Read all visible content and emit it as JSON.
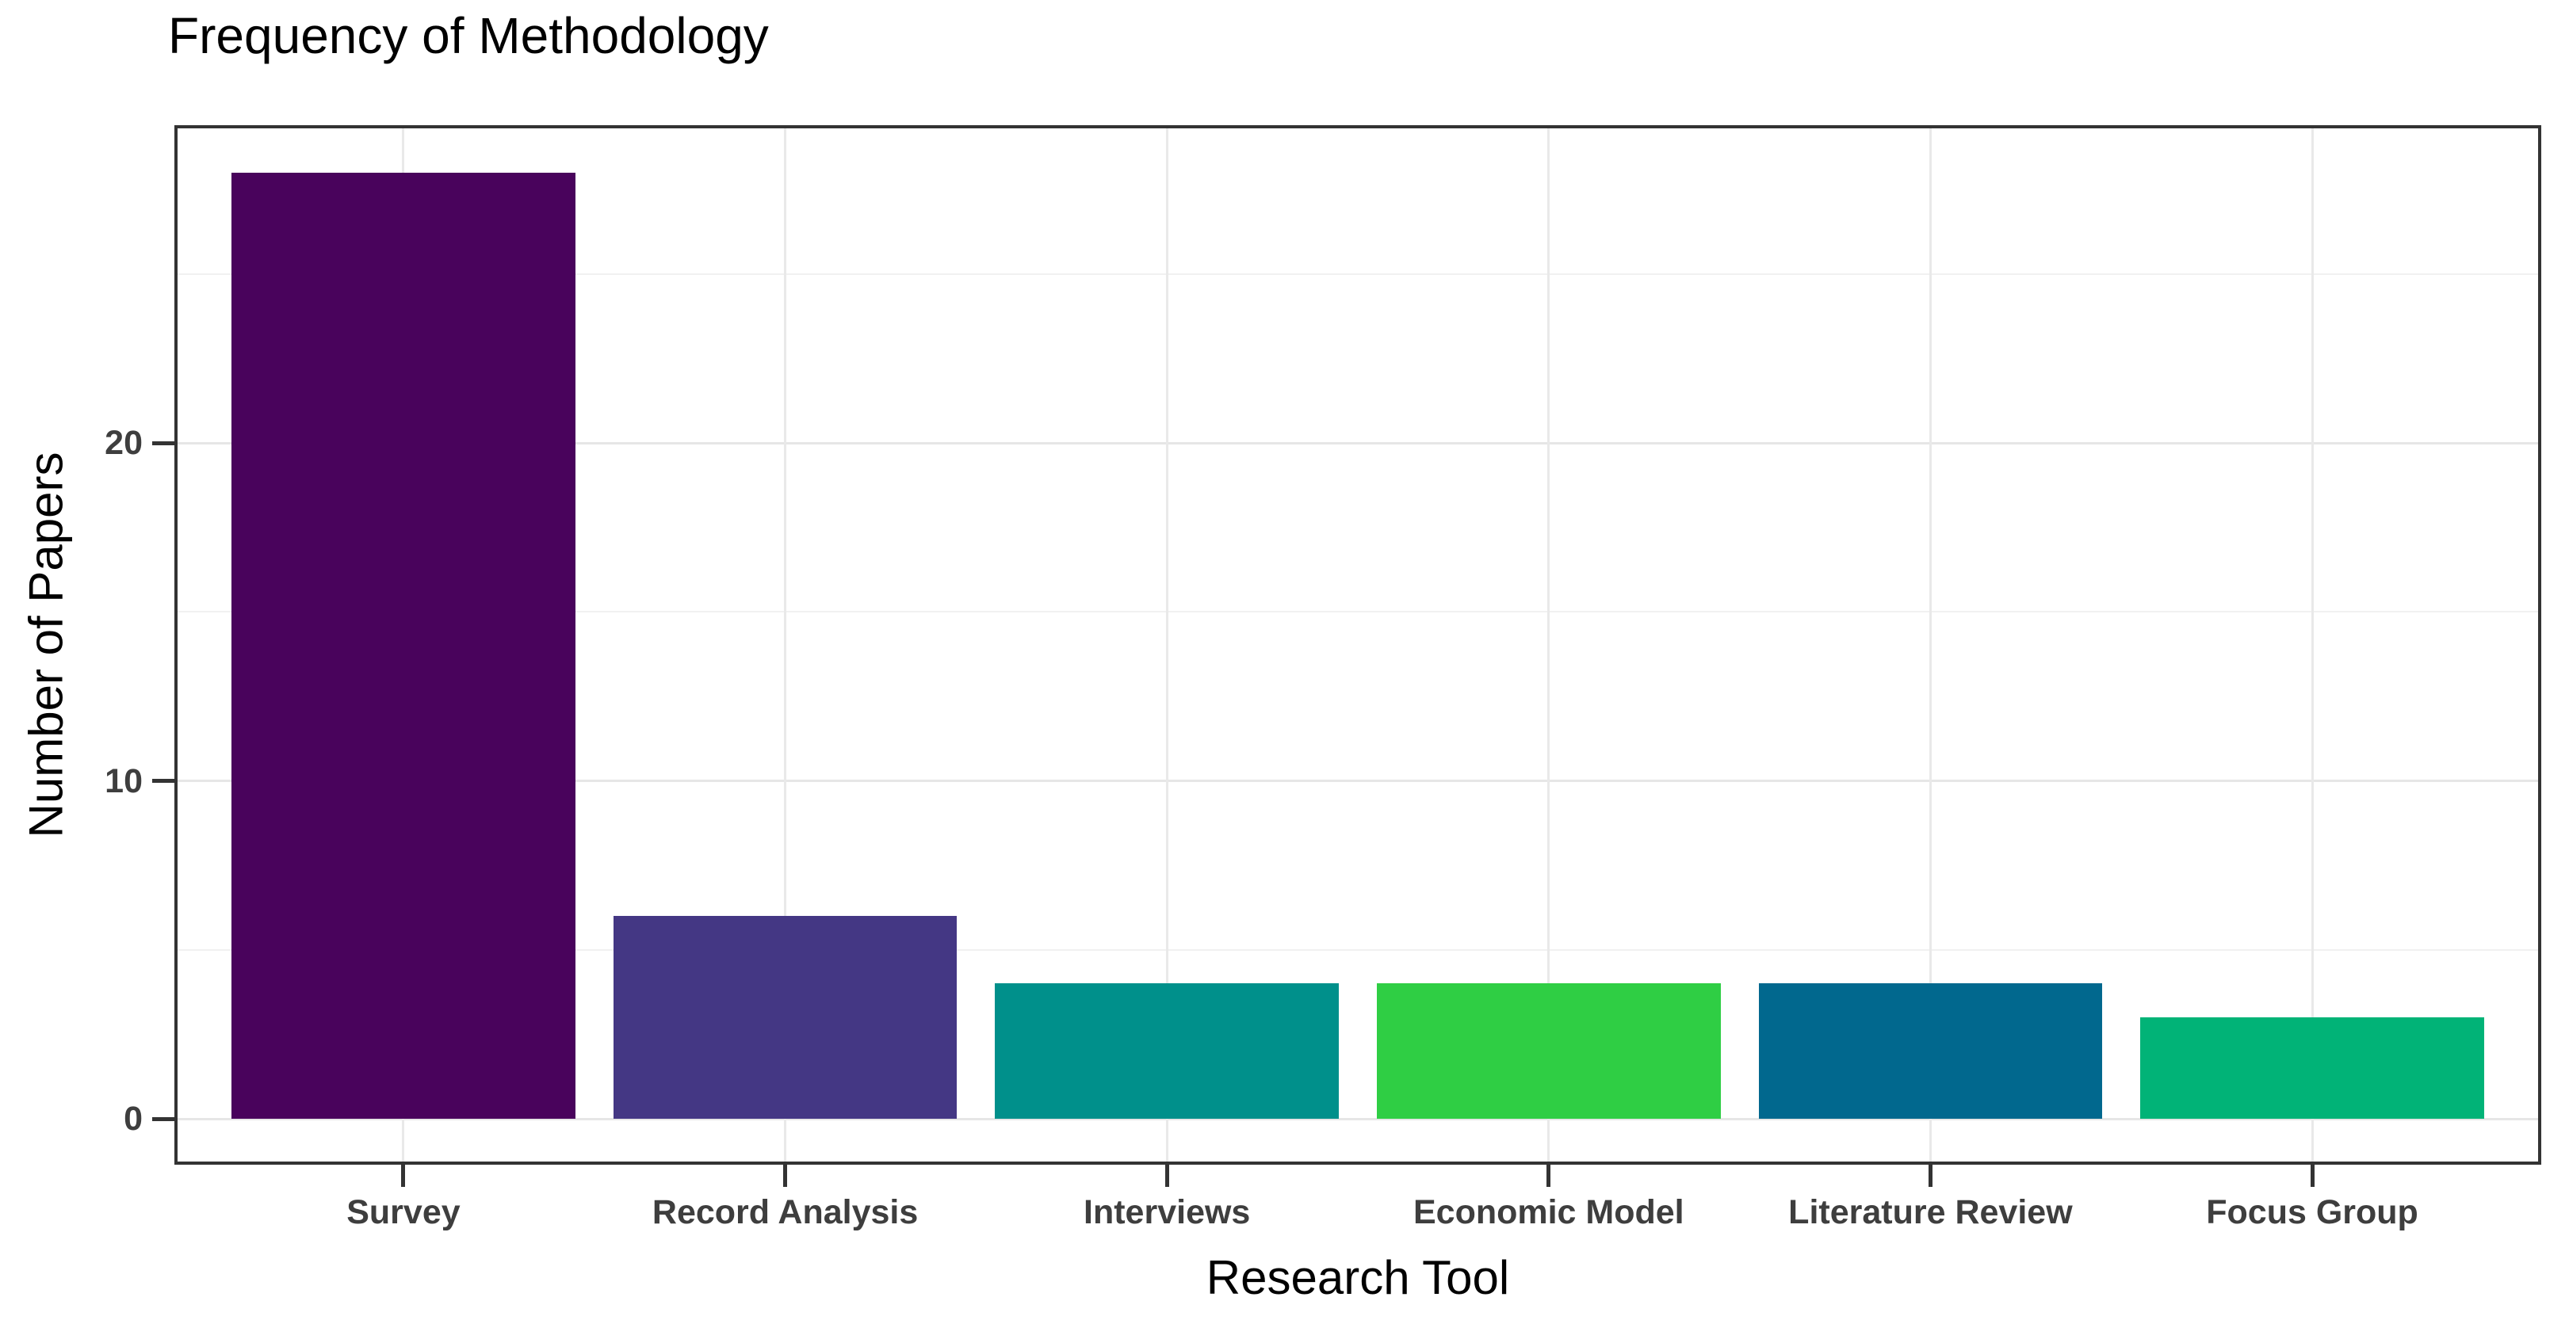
{
  "chart_data": {
    "type": "bar",
    "title": "Frequency of Methodology",
    "xlabel": "Research Tool",
    "ylabel": "Number of Papers",
    "categories": [
      "Survey",
      "Record Analysis",
      "Interviews",
      "Economic Model",
      "Literature Review",
      "Focus Group"
    ],
    "values": [
      28,
      6,
      4,
      4,
      4,
      3
    ],
    "bar_colors": [
      "#49035C",
      "#443784",
      "#00908B",
      "#2FCE44",
      "#01688E",
      "#01B377"
    ],
    "yticks": [
      0,
      10,
      20
    ],
    "ytick_labels": [
      "0",
      "10",
      "20"
    ],
    "minor_yticks": [
      5,
      15,
      25
    ],
    "ylim": [
      0,
      29.6
    ],
    "bar_width_fraction": 0.9,
    "grid": "horizontal major+minor, vertical major at category centers",
    "legend": "none",
    "panel_background": "#FFFFFF",
    "panel_border_color": "#333333",
    "grid_major_color": "#E6E6E6",
    "grid_minor_color": "#F1F1F1",
    "axis_text_color": "#3E3E3E",
    "title_color": "#000000"
  }
}
